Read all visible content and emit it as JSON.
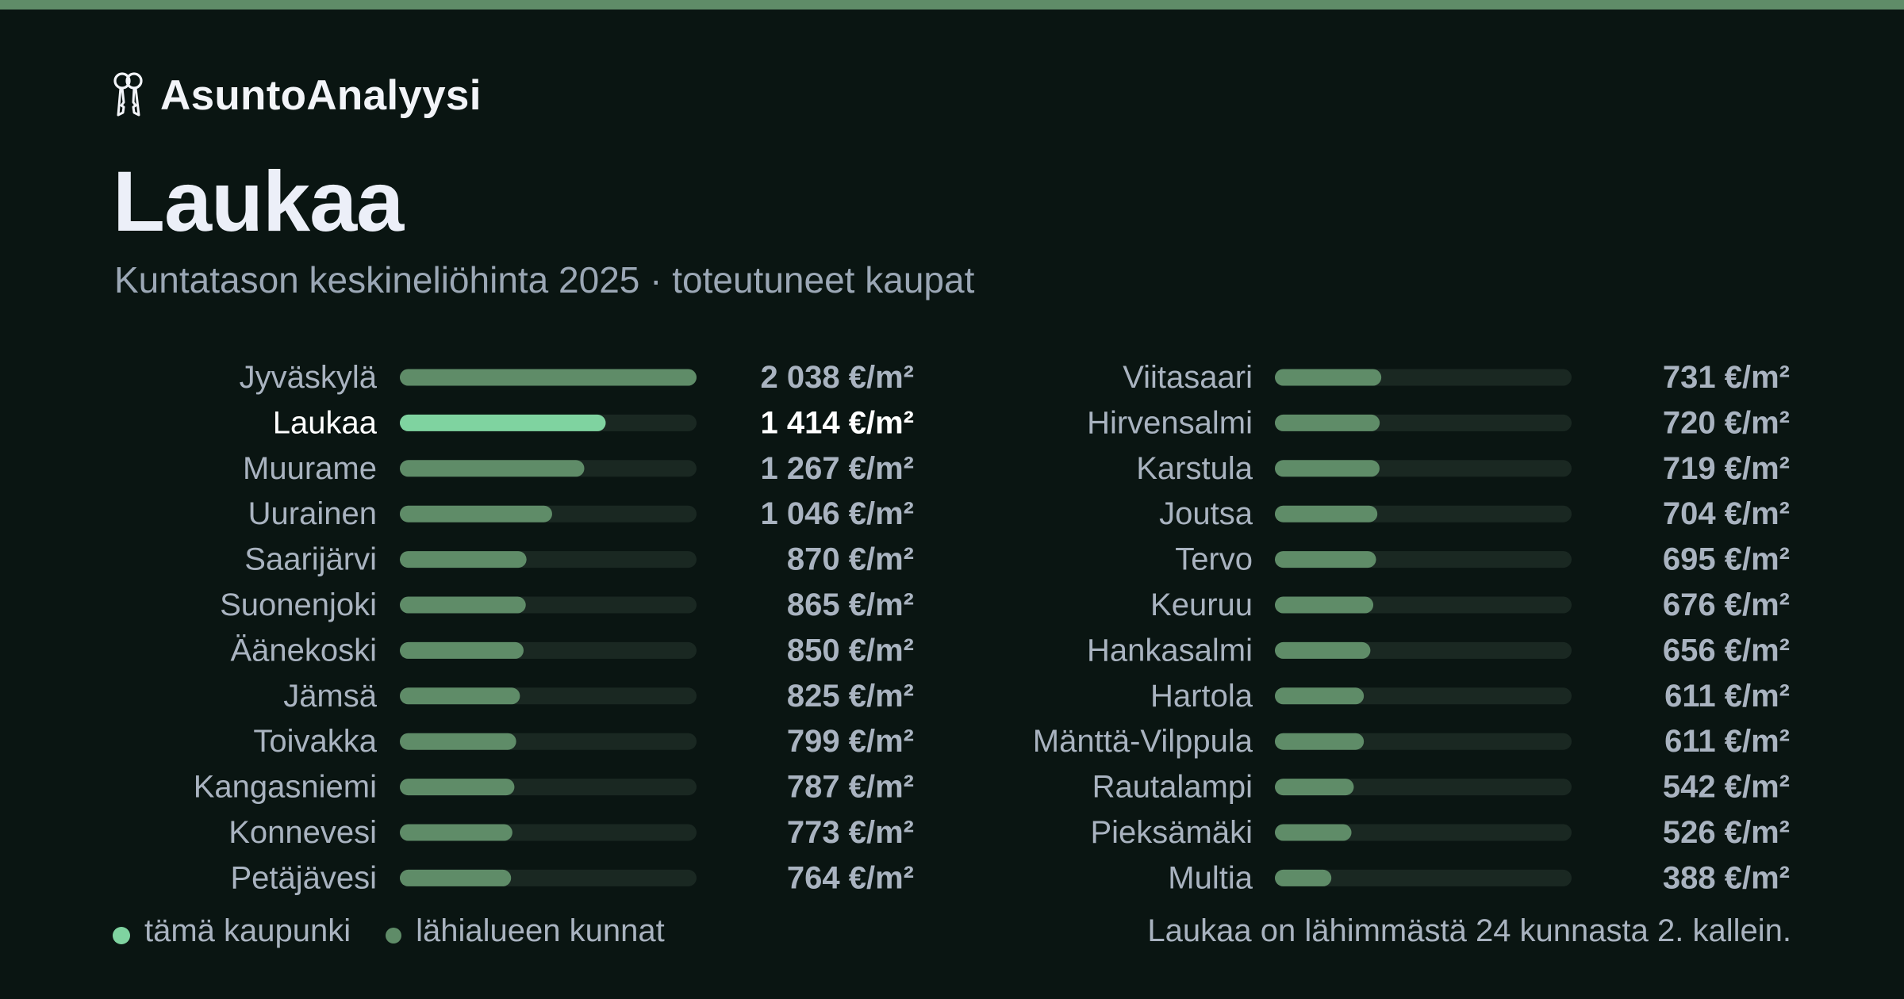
{
  "brand": {
    "name": "AsuntoAnalyysi",
    "icon": "keys-icon"
  },
  "colors": {
    "accent": "#7fd3a0",
    "bar": "#5f8c68",
    "track": "#1a2822",
    "top_bar": "#5f8c68",
    "background": "#0a1512"
  },
  "chart_data": {
    "type": "bar",
    "orientation": "horizontal",
    "title": "Laukaa",
    "subtitle": "Kuntatason keskineliöhinta 2025 · toteutuneet kaupat",
    "unit": "€/m²",
    "highlight": "Laukaa",
    "columns": [
      {
        "categories": [
          "Jyväskylä",
          "Laukaa",
          "Muurame",
          "Uurainen",
          "Saarijärvi",
          "Suonenjoki",
          "Äänekoski",
          "Jämsä",
          "Toivakka",
          "Kangasniemi",
          "Konnevesi",
          "Petäjävesi"
        ],
        "values": [
          2038,
          1414,
          1267,
          1046,
          870,
          865,
          850,
          825,
          799,
          787,
          773,
          764
        ],
        "labels": [
          "2 038 €/m²",
          "1 414 €/m²",
          "1 267 €/m²",
          "1 046 €/m²",
          "870 €/m²",
          "865 €/m²",
          "850 €/m²",
          "825 €/m²",
          "799 €/m²",
          "787 €/m²",
          "773 €/m²",
          "764 €/m²"
        ]
      },
      {
        "categories": [
          "Viitasaari",
          "Hirvensalmi",
          "Karstula",
          "Joutsa",
          "Tervo",
          "Keuruu",
          "Hankasalmi",
          "Hartola",
          "Mänttä-Vilppula",
          "Rautalampi",
          "Pieksämäki",
          "Multia"
        ],
        "values": [
          731,
          720,
          719,
          704,
          695,
          676,
          656,
          611,
          611,
          542,
          526,
          388
        ],
        "labels": [
          "731 €/m²",
          "720 €/m²",
          "719 €/m²",
          "704 €/m²",
          "695 €/m²",
          "676 €/m²",
          "656 €/m²",
          "611 €/m²",
          "611 €/m²",
          "542 €/m²",
          "526 €/m²",
          "388 €/m²"
        ]
      }
    ],
    "xlim": [
      0,
      2038
    ],
    "grid": false,
    "legend": {
      "placement": "bottom-left",
      "items": [
        {
          "label": "tämä kaupunki",
          "color": "#7fd3a0"
        },
        {
          "label": "lähialueen kunnat",
          "color": "#5f8c68"
        }
      ]
    },
    "footnote": "Laukaa on lähimmästä 24 kunnasta 2. kallein."
  }
}
